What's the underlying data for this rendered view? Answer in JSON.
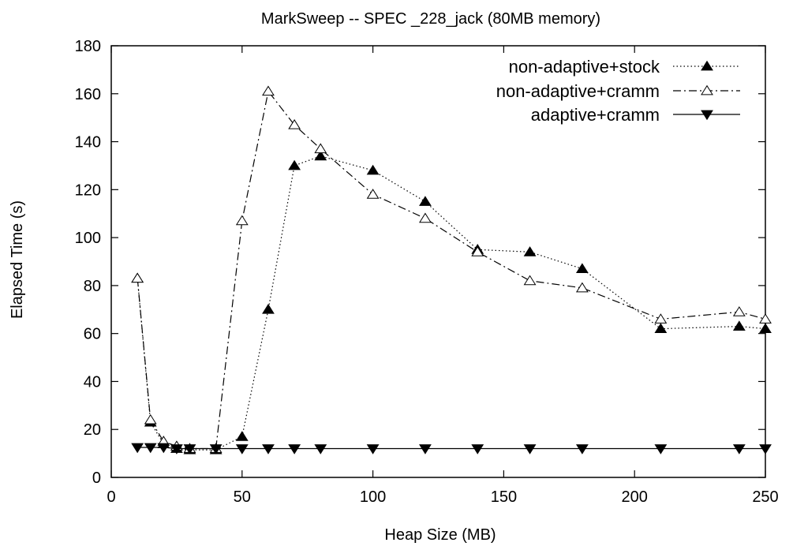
{
  "chart_data": {
    "type": "line",
    "title": "MarkSweep -- SPEC _228_jack (80MB memory)",
    "xlabel": "Heap Size (MB)",
    "ylabel": "Elapsed Time (s)",
    "xlim": [
      0,
      250
    ],
    "ylim": [
      0,
      180
    ],
    "xticks": [
      0,
      50,
      100,
      150,
      200,
      250
    ],
    "yticks": [
      0,
      20,
      40,
      60,
      80,
      100,
      120,
      140,
      160,
      180
    ],
    "grid": false,
    "legend_position": "top-right",
    "series": [
      {
        "name": "non-adaptive+stock",
        "marker": "filled-triangle-up",
        "dash": "dotted",
        "x": [
          10,
          15,
          20,
          25,
          30,
          40,
          50,
          60,
          70,
          80,
          100,
          120,
          140,
          160,
          180,
          210,
          240,
          250
        ],
        "y": [
          83,
          23,
          14,
          12,
          11.5,
          11.5,
          17,
          70,
          130,
          134,
          128,
          115,
          95,
          94,
          87,
          62,
          63,
          62
        ]
      },
      {
        "name": "non-adaptive+cramm",
        "marker": "open-triangle-up",
        "dash": "dash-dot",
        "x": [
          10,
          15,
          20,
          25,
          30,
          40,
          50,
          60,
          70,
          80,
          100,
          120,
          140,
          160,
          180,
          210,
          240,
          250
        ],
        "y": [
          83,
          24,
          15,
          13,
          12,
          12,
          107,
          161,
          147,
          137,
          118,
          108,
          94,
          82,
          79,
          66,
          69,
          66
        ]
      },
      {
        "name": "adaptive+cramm",
        "marker": "filled-triangle-down",
        "dash": "solid",
        "x": [
          10,
          15,
          20,
          25,
          30,
          40,
          50,
          60,
          70,
          80,
          100,
          120,
          140,
          160,
          180,
          210,
          240,
          250
        ],
        "y": [
          12.5,
          12.5,
          12.5,
          12,
          12,
          12,
          12,
          12,
          12,
          12,
          12,
          12,
          12,
          12,
          12,
          12,
          12,
          12
        ]
      }
    ]
  }
}
